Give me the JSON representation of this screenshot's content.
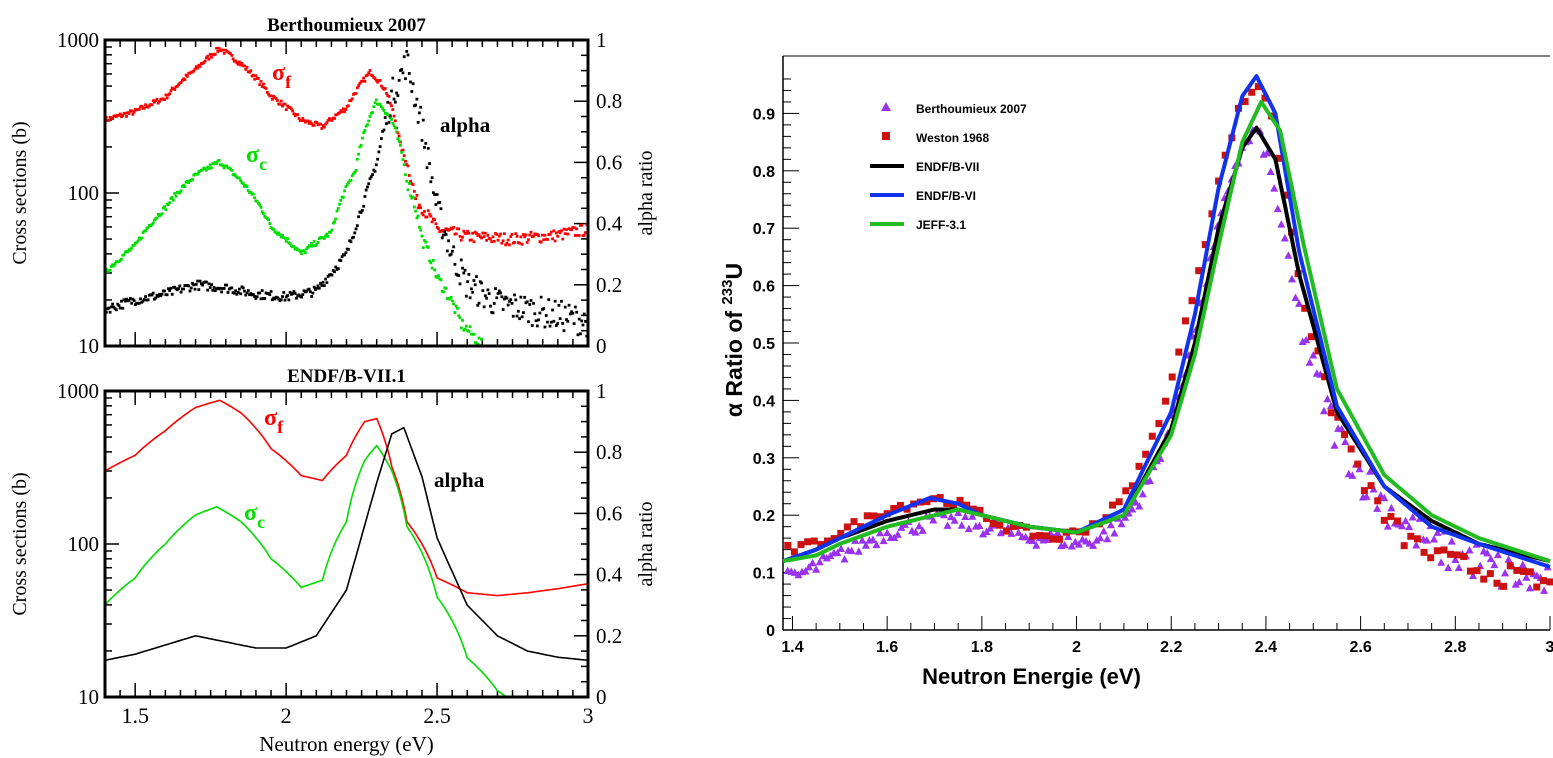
{
  "chart_data": [
    {
      "id": "top-left",
      "type": "scatter",
      "title": "Berthoumieux 2007",
      "xlabel": "",
      "ylabel": "Cross sections (b)",
      "y2label": "alpha ratio",
      "xlim": [
        1.4,
        3.0
      ],
      "ylim": [
        10,
        1000
      ],
      "yscale": "log",
      "y2lim": [
        0,
        1
      ],
      "yticks": [
        "10",
        "100",
        "1000"
      ],
      "y2ticks": [
        "0",
        "0.2",
        "0.4",
        "0.6",
        "0.8",
        "1"
      ],
      "annotations": {
        "sigma": "σ",
        "f": "f",
        "c": "c",
        "alpha": "alpha"
      },
      "colors": {
        "fission": "#ff0000",
        "capture": "#00dd00",
        "alpha": "#000000"
      },
      "series": [
        {
          "key": "fission",
          "axis": "left",
          "x": [
            1.4,
            1.5,
            1.6,
            1.7,
            1.78,
            1.85,
            1.95,
            2.05,
            2.12,
            2.2,
            2.28,
            2.33,
            2.38,
            2.43,
            2.5,
            2.6,
            2.75,
            2.9,
            3.0
          ],
          "values": [
            300,
            340,
            420,
            640,
            880,
            700,
            430,
            300,
            270,
            360,
            620,
            470,
            200,
            90,
            58,
            52,
            50,
            53,
            58
          ]
        },
        {
          "key": "capture",
          "axis": "left",
          "x": [
            1.4,
            1.5,
            1.6,
            1.7,
            1.78,
            1.85,
            1.95,
            2.05,
            2.15,
            2.23,
            2.3,
            2.35,
            2.4,
            2.45,
            2.5,
            2.58,
            2.65
          ],
          "values": [
            30,
            45,
            80,
            130,
            160,
            120,
            60,
            40,
            55,
            140,
            400,
            300,
            120,
            50,
            28,
            14,
            10
          ]
        },
        {
          "key": "alpha",
          "axis": "right",
          "x": [
            1.4,
            1.5,
            1.6,
            1.7,
            1.8,
            1.9,
            2.0,
            2.1,
            2.2,
            2.3,
            2.35,
            2.4,
            2.45,
            2.5,
            2.55,
            2.6,
            2.7,
            2.8,
            2.9,
            3.0
          ],
          "values": [
            0.12,
            0.15,
            0.17,
            0.2,
            0.19,
            0.17,
            0.16,
            0.18,
            0.3,
            0.6,
            0.82,
            0.93,
            0.72,
            0.45,
            0.3,
            0.2,
            0.14,
            0.12,
            0.1,
            0.08
          ]
        }
      ]
    },
    {
      "id": "bottom-left",
      "type": "line",
      "title": "ENDF/B-VII.1",
      "xlabel": "Neutron energy (eV)",
      "ylabel": "Cross sections (b)",
      "y2label": "alpha ratio",
      "xlim": [
        1.4,
        3.0
      ],
      "ylim": [
        10,
        1000
      ],
      "yscale": "log",
      "y2lim": [
        0,
        1
      ],
      "xticks": [
        "1.5",
        "2",
        "2.5",
        "3"
      ],
      "yticks": [
        "10",
        "100",
        "1000"
      ],
      "y2ticks": [
        "0",
        "0.2",
        "0.4",
        "0.6",
        "0.8",
        "1"
      ],
      "annotations": {
        "sigma": "σ",
        "f": "f",
        "c": "c",
        "alpha": "alpha"
      },
      "colors": {
        "fission": "#ff0000",
        "capture": "#00dd00",
        "alpha": "#000000"
      },
      "series": [
        {
          "key": "fission",
          "axis": "left",
          "x": [
            1.4,
            1.5,
            1.6,
            1.7,
            1.78,
            1.85,
            1.95,
            2.05,
            2.12,
            2.2,
            2.26,
            2.3,
            2.35,
            2.4,
            2.5,
            2.6,
            2.7,
            2.8,
            2.9,
            3.0
          ],
          "values": [
            300,
            380,
            550,
            780,
            870,
            720,
            420,
            280,
            260,
            380,
            630,
            660,
            320,
            140,
            60,
            48,
            46,
            48,
            51,
            55
          ]
        },
        {
          "key": "capture",
          "axis": "left",
          "x": [
            1.4,
            1.5,
            1.6,
            1.7,
            1.77,
            1.85,
            1.95,
            2.05,
            2.12,
            2.2,
            2.26,
            2.3,
            2.35,
            2.4,
            2.5,
            2.6,
            2.7,
            2.73
          ],
          "values": [
            40,
            60,
            100,
            155,
            175,
            140,
            80,
            52,
            58,
            140,
            350,
            440,
            300,
            130,
            45,
            18,
            11,
            10
          ]
        },
        {
          "key": "alpha",
          "axis": "right",
          "x": [
            1.4,
            1.5,
            1.6,
            1.7,
            1.8,
            1.9,
            2.0,
            2.1,
            2.2,
            2.3,
            2.35,
            2.39,
            2.45,
            2.5,
            2.6,
            2.7,
            2.8,
            2.9,
            3.0
          ],
          "values": [
            0.12,
            0.14,
            0.17,
            0.2,
            0.18,
            0.16,
            0.16,
            0.2,
            0.35,
            0.7,
            0.86,
            0.88,
            0.72,
            0.52,
            0.3,
            0.2,
            0.15,
            0.13,
            0.12
          ]
        }
      ]
    },
    {
      "id": "right",
      "type": "scatter",
      "title": "",
      "xlabel": "Neutron Energie (eV)",
      "ylabel_prefix": "α Ratio of ",
      "ylabel_sup": "233",
      "ylabel_suffix": "U",
      "xlim": [
        1.38,
        3.0
      ],
      "ylim": [
        0,
        1.0
      ],
      "xticks": [
        "1.4",
        "1.6",
        "1.8",
        "2",
        "2.2",
        "2.4",
        "2.6",
        "2.8",
        "3"
      ],
      "yticks": [
        "0",
        "0.1",
        "0.2",
        "0.3",
        "0.4",
        "0.5",
        "0.6",
        "0.7",
        "0.8",
        "0.9"
      ],
      "legend_position": "top-left",
      "series": [
        {
          "name": "Berthoumieux 2007",
          "marker": "triangle",
          "color": "#9933ee",
          "x": [
            1.4,
            1.45,
            1.5,
            1.55,
            1.6,
            1.65,
            1.7,
            1.75,
            1.8,
            1.85,
            1.9,
            1.95,
            2.0,
            2.05,
            2.1,
            2.15,
            2.2,
            2.25,
            2.3,
            2.33,
            2.36,
            2.38,
            2.4,
            2.43,
            2.46,
            2.5,
            2.55,
            2.6,
            2.65,
            2.7,
            2.75,
            2.8,
            2.85,
            2.9,
            2.95,
            3.0
          ],
          "values": [
            0.09,
            0.11,
            0.13,
            0.15,
            0.17,
            0.18,
            0.19,
            0.19,
            0.18,
            0.17,
            0.16,
            0.16,
            0.15,
            0.16,
            0.19,
            0.25,
            0.36,
            0.52,
            0.7,
            0.8,
            0.85,
            0.87,
            0.83,
            0.72,
            0.58,
            0.45,
            0.34,
            0.27,
            0.22,
            0.18,
            0.15,
            0.13,
            0.12,
            0.1,
            0.09,
            0.08
          ]
        },
        {
          "name": "Weston 1968",
          "marker": "square",
          "color": "#cc1111",
          "x": [
            1.4,
            1.45,
            1.5,
            1.55,
            1.6,
            1.65,
            1.7,
            1.75,
            1.8,
            1.85,
            1.9,
            1.95,
            2.0,
            2.05,
            2.1,
            2.15,
            2.2,
            2.25,
            2.3,
            2.34,
            2.37,
            2.39,
            2.41,
            2.44,
            2.48,
            2.52,
            2.58,
            2.63,
            2.68,
            2.73,
            2.78,
            2.83,
            2.88,
            2.93,
            2.98
          ],
          "values": [
            0.14,
            0.15,
            0.17,
            0.19,
            0.21,
            0.22,
            0.23,
            0.22,
            0.2,
            0.18,
            0.17,
            0.16,
            0.17,
            0.19,
            0.23,
            0.31,
            0.43,
            0.6,
            0.78,
            0.9,
            0.94,
            0.95,
            0.9,
            0.76,
            0.58,
            0.43,
            0.31,
            0.22,
            0.17,
            0.14,
            0.12,
            0.11,
            0.1,
            0.09,
            0.08
          ]
        },
        {
          "name": "ENDF/B-VII",
          "marker": "line",
          "color": "#000000",
          "x": [
            1.38,
            1.45,
            1.5,
            1.6,
            1.7,
            1.75,
            1.8,
            1.9,
            2.0,
            2.1,
            2.2,
            2.25,
            2.3,
            2.35,
            2.38,
            2.42,
            2.47,
            2.55,
            2.65,
            2.75,
            2.85,
            3.0
          ],
          "values": [
            0.12,
            0.14,
            0.16,
            0.19,
            0.21,
            0.21,
            0.2,
            0.18,
            0.17,
            0.2,
            0.35,
            0.5,
            0.7,
            0.84,
            0.875,
            0.82,
            0.62,
            0.38,
            0.25,
            0.19,
            0.15,
            0.12
          ]
        },
        {
          "name": "ENDF/B-VI",
          "marker": "line",
          "color": "#1133ee",
          "x": [
            1.38,
            1.45,
            1.5,
            1.6,
            1.69,
            1.75,
            1.8,
            1.9,
            2.0,
            2.1,
            2.2,
            2.25,
            2.3,
            2.35,
            2.38,
            2.42,
            2.47,
            2.55,
            2.65,
            2.75,
            2.85,
            3.0
          ],
          "values": [
            0.12,
            0.14,
            0.16,
            0.2,
            0.23,
            0.22,
            0.2,
            0.18,
            0.17,
            0.21,
            0.38,
            0.55,
            0.77,
            0.93,
            0.965,
            0.9,
            0.66,
            0.39,
            0.25,
            0.18,
            0.15,
            0.11
          ]
        },
        {
          "name": "JEFF-3.1",
          "marker": "line",
          "color": "#22bb22",
          "x": [
            1.38,
            1.45,
            1.5,
            1.6,
            1.7,
            1.75,
            1.8,
            1.9,
            2.0,
            2.1,
            2.2,
            2.25,
            2.3,
            2.35,
            2.39,
            2.43,
            2.48,
            2.55,
            2.65,
            2.75,
            2.85,
            3.0
          ],
          "values": [
            0.12,
            0.13,
            0.15,
            0.18,
            0.2,
            0.21,
            0.2,
            0.18,
            0.17,
            0.2,
            0.34,
            0.48,
            0.67,
            0.85,
            0.92,
            0.87,
            0.67,
            0.42,
            0.27,
            0.2,
            0.16,
            0.12
          ]
        }
      ]
    }
  ]
}
